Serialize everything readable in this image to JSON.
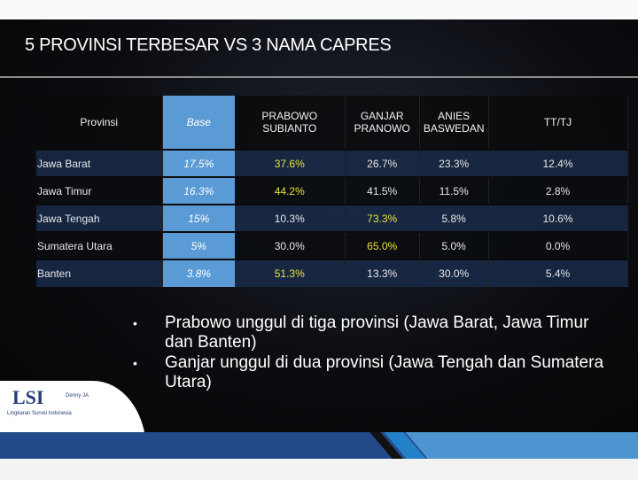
{
  "title": "5 PROVINSI TERBESAR VS 3 NAMA CAPRES",
  "table": {
    "headers": [
      "Provinsi",
      "Base",
      "PRABOWO SUBIANTO",
      "GANJAR PRANOWO",
      "ANIES BASWEDAN",
      "TT/TJ"
    ],
    "rows": [
      {
        "provinsi": "Jawa Barat",
        "base": "17.5%",
        "prabowo": "37.6%",
        "ganjar": "26.7%",
        "anies": "23.3%",
        "tttj": "12.4%",
        "highlight": "prabowo"
      },
      {
        "provinsi": "Jawa Timur",
        "base": "16.3%",
        "prabowo": "44.2%",
        "ganjar": "41.5%",
        "anies": "11.5%",
        "tttj": "2.8%",
        "highlight": "prabowo"
      },
      {
        "provinsi": "Jawa Tengah",
        "base": "15%",
        "prabowo": "10.3%",
        "ganjar": "73.3%",
        "anies": "5.8%",
        "tttj": "10.6%",
        "highlight": "ganjar"
      },
      {
        "provinsi": "Sumatera Utara",
        "base": "5%",
        "prabowo": "30.0%",
        "ganjar": "65.0%",
        "anies": "5.0%",
        "tttj": "0.0%",
        "highlight": "ganjar"
      },
      {
        "provinsi": "Banten",
        "base": "3.8%",
        "prabowo": "51.3%",
        "ganjar": "13.3%",
        "anies": "30.0%",
        "tttj": "5.4%",
        "highlight": "prabowo"
      }
    ]
  },
  "bullets": [
    "Prabowo unggul di tiga provinsi (Jawa Barat, Jawa Timur dan Banten)",
    "Ganjar unggul di dua provinsi (Jawa Tengah dan Sumatera Utara)"
  ],
  "logo": {
    "mark": "LSI",
    "sub": "Lingkaran Survei Indonesia",
    "tag": "Denny JA"
  },
  "colors": {
    "base_col": "#5b9bd5",
    "highlight": "#e8e23a",
    "row_blue": "#182844",
    "band": "#24498a"
  }
}
